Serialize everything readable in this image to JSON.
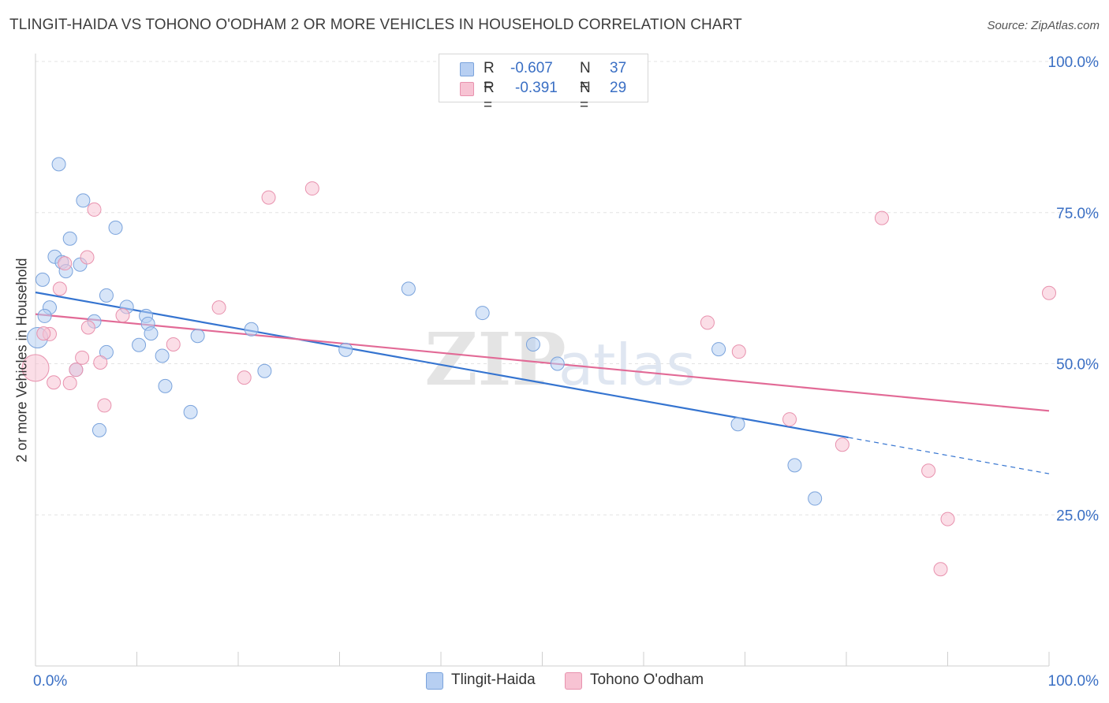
{
  "title": "TLINGIT-HAIDA VS TOHONO O'ODHAM 2 OR MORE VEHICLES IN HOUSEHOLD CORRELATION CHART",
  "source": "Source: ZipAtlas.com",
  "watermark": {
    "zip": "ZIP",
    "atlas": "atlas"
  },
  "legend": {
    "series1": {
      "r_label": "R =",
      "r_value": "-0.607",
      "n_label": "N =",
      "n_value": "37"
    },
    "series2": {
      "r_label": "R =",
      "r_value": "-0.391",
      "n_label": "N =",
      "n_value": "29"
    }
  },
  "colors": {
    "blue_fill": "#b7cff2",
    "blue_stroke": "#7aa3dc",
    "blue_line": "#3574d0",
    "pink_fill": "#f7c3d3",
    "pink_stroke": "#e892ae",
    "pink_line": "#e26a96",
    "tick_text": "#3a6fc4",
    "grid": "#e3e3e3"
  },
  "chart_data": {
    "type": "scatter",
    "title": "TLINGIT-HAIDA VS TOHONO O'ODHAM 2 OR MORE VEHICLES IN HOUSEHOLD CORRELATION CHART",
    "xlabel": "",
    "ylabel": "2 or more Vehicles in Household",
    "xlim": [
      0,
      100
    ],
    "ylim": [
      0,
      100
    ],
    "x_tick_labels": [
      "0.0%",
      "100.0%"
    ],
    "y_ticks": [
      25,
      50,
      75,
      100
    ],
    "y_tick_labels": [
      "25.0%",
      "50.0%",
      "75.0%",
      "100.0%"
    ],
    "legend_position": "bottom",
    "series": [
      {
        "name": "Tlingit-Haida",
        "color": "#b7cff2",
        "trend": {
          "x": [
            0,
            80.2
          ],
          "y": [
            61.8,
            37.8
          ],
          "extend_to": [
            100,
            31.8
          ]
        },
        "points": [
          {
            "x": 2.3,
            "y": 83.0
          },
          {
            "x": 4.7,
            "y": 77.0
          },
          {
            "x": 7.9,
            "y": 72.5
          },
          {
            "x": 3.4,
            "y": 70.7
          },
          {
            "x": 1.9,
            "y": 67.7
          },
          {
            "x": 2.6,
            "y": 66.8
          },
          {
            "x": 4.4,
            "y": 66.4
          },
          {
            "x": 3.0,
            "y": 65.3
          },
          {
            "x": 0.7,
            "y": 63.9
          },
          {
            "x": 7.0,
            "y": 61.3
          },
          {
            "x": 1.4,
            "y": 59.3
          },
          {
            "x": 9.0,
            "y": 59.4
          },
          {
            "x": 0.9,
            "y": 57.9
          },
          {
            "x": 10.9,
            "y": 57.9
          },
          {
            "x": 5.8,
            "y": 57.0
          },
          {
            "x": 11.1,
            "y": 56.6
          },
          {
            "x": 11.4,
            "y": 55.0
          },
          {
            "x": 16.0,
            "y": 54.6
          },
          {
            "x": 21.3,
            "y": 55.7
          },
          {
            "x": 0.2,
            "y": 54.3,
            "r": 13
          },
          {
            "x": 10.2,
            "y": 53.1
          },
          {
            "x": 7.0,
            "y": 51.9
          },
          {
            "x": 12.5,
            "y": 51.3
          },
          {
            "x": 4.0,
            "y": 49.0
          },
          {
            "x": 22.6,
            "y": 48.8
          },
          {
            "x": 12.8,
            "y": 46.3
          },
          {
            "x": 15.3,
            "y": 42.0
          },
          {
            "x": 6.3,
            "y": 39.0
          },
          {
            "x": 36.8,
            "y": 62.4
          },
          {
            "x": 44.1,
            "y": 58.4
          },
          {
            "x": 49.1,
            "y": 53.2
          },
          {
            "x": 30.6,
            "y": 52.3
          },
          {
            "x": 51.5,
            "y": 50.0
          },
          {
            "x": 67.4,
            "y": 52.4
          },
          {
            "x": 69.3,
            "y": 40.0
          },
          {
            "x": 74.9,
            "y": 33.2
          },
          {
            "x": 76.9,
            "y": 27.7
          }
        ]
      },
      {
        "name": "Tohono O'odham",
        "color": "#f7c3d3",
        "trend": {
          "x": [
            0,
            100
          ],
          "y": [
            58.2,
            42.2
          ]
        },
        "points": [
          {
            "x": 27.3,
            "y": 79.0
          },
          {
            "x": 23.0,
            "y": 77.5
          },
          {
            "x": 5.8,
            "y": 75.5
          },
          {
            "x": 5.1,
            "y": 67.6
          },
          {
            "x": 2.9,
            "y": 66.6
          },
          {
            "x": 2.4,
            "y": 62.4
          },
          {
            "x": 18.1,
            "y": 59.3
          },
          {
            "x": 8.6,
            "y": 58.0
          },
          {
            "x": 5.2,
            "y": 56.0
          },
          {
            "x": 1.4,
            "y": 54.9
          },
          {
            "x": 0.8,
            "y": 55.0
          },
          {
            "x": 13.6,
            "y": 53.2
          },
          {
            "x": 4.6,
            "y": 51.0
          },
          {
            "x": 6.4,
            "y": 50.2
          },
          {
            "x": 0.0,
            "y": 49.3,
            "r": 17
          },
          {
            "x": 4.0,
            "y": 49.0
          },
          {
            "x": 20.6,
            "y": 47.7
          },
          {
            "x": 1.8,
            "y": 46.9
          },
          {
            "x": 3.4,
            "y": 46.8
          },
          {
            "x": 6.8,
            "y": 43.1
          },
          {
            "x": 66.3,
            "y": 56.8
          },
          {
            "x": 69.4,
            "y": 52.0
          },
          {
            "x": 83.5,
            "y": 74.1
          },
          {
            "x": 100.0,
            "y": 61.7
          },
          {
            "x": 74.4,
            "y": 40.8
          },
          {
            "x": 79.6,
            "y": 36.6
          },
          {
            "x": 88.1,
            "y": 32.3
          },
          {
            "x": 90.0,
            "y": 24.3
          },
          {
            "x": 89.3,
            "y": 16.0
          }
        ]
      }
    ]
  }
}
